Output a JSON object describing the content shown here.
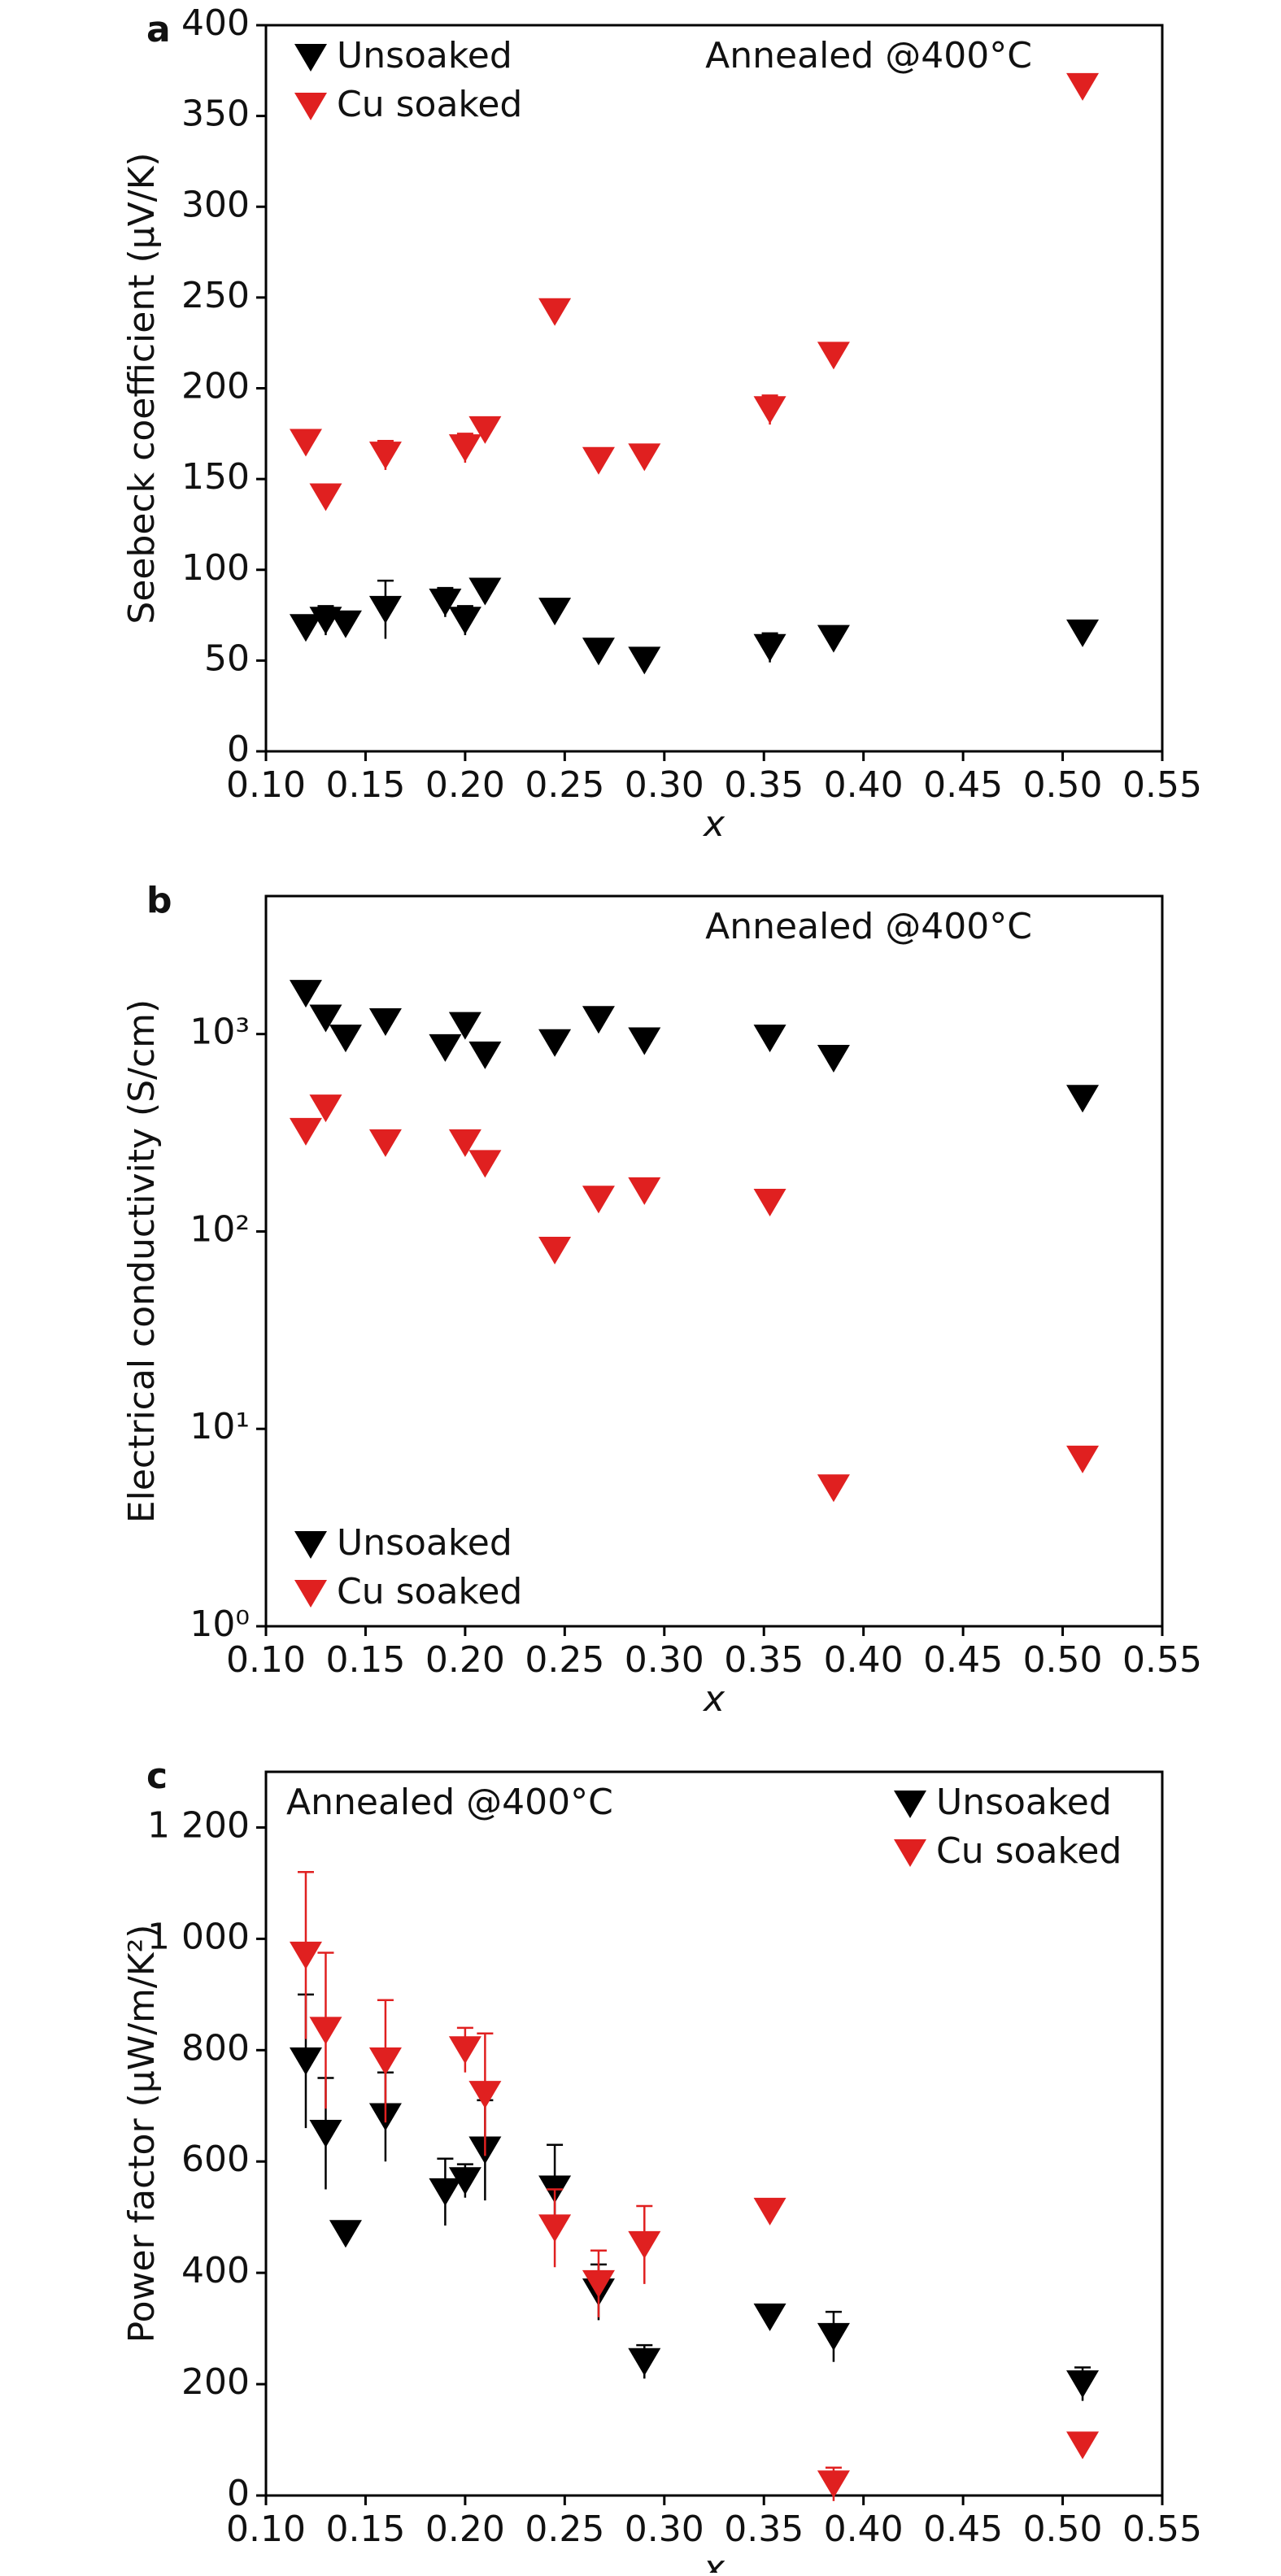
{
  "chart_data": [
    {
      "type": "scatter",
      "panel_label": "a",
      "annotation": "Annealed @400°C",
      "x_label": "x",
      "y_label": "Seebeck coefficient (μV/K)",
      "xlim": [
        0.1,
        0.55
      ],
      "xticks": [
        {
          "value": 0.1,
          "label": "0.10"
        },
        0.15,
        {
          "value": 0.2,
          "label": "0.20"
        },
        0.25,
        {
          "value": 0.3,
          "label": "0.30"
        },
        0.35,
        {
          "value": 0.4,
          "label": "0.40"
        },
        0.45,
        {
          "value": 0.5,
          "label": "0.50"
        },
        0.55
      ],
      "ylim": [
        0,
        400
      ],
      "yticks": [
        0,
        50,
        100,
        150,
        200,
        250,
        300,
        350,
        400
      ],
      "yscale": "linear",
      "legend": "upper left",
      "series": [
        {
          "name": "Unsoaked",
          "color": "#000000",
          "x": [
            0.12,
            0.13,
            0.14,
            0.16,
            0.19,
            0.2,
            0.21,
            0.245,
            0.267,
            0.29,
            0.353,
            0.385,
            0.51
          ],
          "values": [
            68,
            72,
            70,
            78,
            82,
            72,
            88,
            77,
            55,
            50,
            57,
            62,
            65
          ],
          "errors": [
            5,
            8,
            5,
            16,
            8,
            8,
            5,
            3,
            3,
            3,
            8,
            3,
            3
          ]
        },
        {
          "name": "Cu soaked",
          "color": "#e02020",
          "x": [
            0.12,
            0.13,
            0.16,
            0.2,
            0.21,
            0.245,
            0.267,
            0.29,
            0.353,
            0.385,
            0.51
          ],
          "values": [
            170,
            140,
            163,
            167,
            177,
            242,
            160,
            162,
            188,
            218,
            366
          ],
          "errors": [
            3,
            5,
            8,
            8,
            3,
            3,
            3,
            3,
            8,
            3,
            3
          ]
        }
      ]
    },
    {
      "type": "scatter",
      "panel_label": "b",
      "annotation": "Annealed @400°C",
      "x_label": "x",
      "y_label": "Electrical conductivity (S/cm)",
      "xlim": [
        0.1,
        0.55
      ],
      "xticks": [
        {
          "value": 0.1,
          "label": "0.10"
        },
        0.15,
        {
          "value": 0.2,
          "label": "0.20"
        },
        0.25,
        {
          "value": 0.3,
          "label": "0.30"
        },
        0.35,
        {
          "value": 0.4,
          "label": "0.40"
        },
        0.45,
        {
          "value": 0.5,
          "label": "0.50"
        },
        0.55
      ],
      "ylim": [
        1,
        5000
      ],
      "yticks": [
        {
          "value": 1,
          "label": "10⁰"
        },
        {
          "value": 10,
          "label": "10¹"
        },
        {
          "value": 100,
          "label": "10²"
        },
        {
          "value": 1000,
          "label": "10³"
        }
      ],
      "yscale": "log",
      "legend": "lower left",
      "series": [
        {
          "name": "Unsoaked",
          "color": "#000000",
          "x": [
            0.12,
            0.13,
            0.14,
            0.16,
            0.19,
            0.2,
            0.21,
            0.245,
            0.267,
            0.29,
            0.353,
            0.385,
            0.51
          ],
          "values": [
            1600,
            1200,
            950,
            1150,
            850,
            1100,
            780,
            900,
            1180,
            920,
            950,
            750,
            470
          ]
        },
        {
          "name": "Cu soaked",
          "color": "#e02020",
          "x": [
            0.12,
            0.13,
            0.16,
            0.2,
            0.21,
            0.245,
            0.267,
            0.29,
            0.353,
            0.385,
            0.51
          ],
          "values": [
            320,
            420,
            280,
            280,
            220,
            80,
            145,
            160,
            140,
            5,
            7
          ]
        }
      ]
    },
    {
      "type": "scatter",
      "panel_label": "c",
      "annotation": "Annealed @400°C",
      "x_label": "x",
      "y_label": "Power factor (μW/m/K²)",
      "xlim": [
        0.1,
        0.55
      ],
      "xticks": [
        {
          "value": 0.1,
          "label": "0.10"
        },
        0.15,
        {
          "value": 0.2,
          "label": "0.20"
        },
        0.25,
        {
          "value": 0.3,
          "label": "0.30"
        },
        0.35,
        {
          "value": 0.4,
          "label": "0.40"
        },
        0.45,
        {
          "value": 0.5,
          "label": "0.50"
        },
        0.55
      ],
      "ylim": [
        0,
        1300
      ],
      "yticks": [
        0,
        200,
        400,
        600,
        800,
        {
          "value": 1000,
          "label": "1 000"
        },
        {
          "value": 1200,
          "label": "1 200"
        }
      ],
      "yscale": "linear",
      "legend": "upper right",
      "series": [
        {
          "name": "Unsoaked",
          "color": "#000000",
          "x": [
            0.12,
            0.13,
            0.14,
            0.16,
            0.19,
            0.2,
            0.21,
            0.245,
            0.267,
            0.29,
            0.353,
            0.385,
            0.51
          ],
          "values": [
            780,
            650,
            470,
            680,
            545,
            565,
            620,
            550,
            365,
            240,
            320,
            285,
            200
          ],
          "errors": [
            120,
            100,
            15,
            80,
            60,
            30,
            90,
            80,
            50,
            30,
            20,
            45,
            30
          ]
        },
        {
          "name": "Cu soaked",
          "color": "#e02020",
          "x": [
            0.12,
            0.13,
            0.16,
            0.2,
            0.21,
            0.245,
            0.267,
            0.29,
            0.353,
            0.385,
            0.51
          ],
          "values": [
            970,
            835,
            780,
            800,
            720,
            480,
            380,
            450,
            510,
            20,
            90
          ],
          "errors": [
            150,
            140,
            110,
            40,
            110,
            70,
            60,
            70,
            15,
            30,
            20
          ]
        }
      ]
    }
  ]
}
